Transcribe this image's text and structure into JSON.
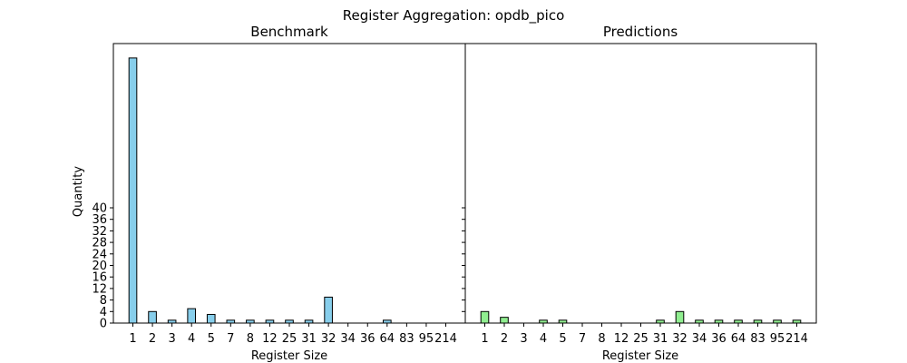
{
  "figure": {
    "suptitle": "Register Aggregation: opdb_pico"
  },
  "chart_data": [
    {
      "type": "bar",
      "title": "Benchmark",
      "xlabel": "Register Size",
      "ylabel": "Quantity",
      "color": "#87CEEB",
      "edge_color": "#000000",
      "yticks": [
        0,
        4,
        8,
        12,
        16,
        20,
        24,
        28,
        32,
        36,
        40
      ],
      "ylim": [
        0,
        97
      ],
      "categories": [
        "1",
        "2",
        "3",
        "4",
        "5",
        "7",
        "8",
        "12",
        "25",
        "31",
        "32",
        "34",
        "36",
        "64",
        "83",
        "95",
        "214"
      ],
      "values": [
        92,
        4,
        1,
        5,
        3,
        1,
        1,
        1,
        1,
        1,
        9,
        0,
        0,
        1,
        0,
        0,
        0
      ]
    },
    {
      "type": "bar",
      "title": "Predictions",
      "xlabel": "Register Size",
      "ylabel": "",
      "color": "#90EE90",
      "edge_color": "#000000",
      "shared_y": true,
      "ylim": [
        0,
        97
      ],
      "categories": [
        "1",
        "2",
        "3",
        "4",
        "5",
        "7",
        "8",
        "12",
        "25",
        "31",
        "32",
        "34",
        "36",
        "64",
        "83",
        "95",
        "214"
      ],
      "values": [
        4,
        2,
        0,
        1,
        1,
        0,
        0,
        0,
        0,
        1,
        4,
        1,
        1,
        1,
        1,
        1,
        1
      ]
    }
  ]
}
